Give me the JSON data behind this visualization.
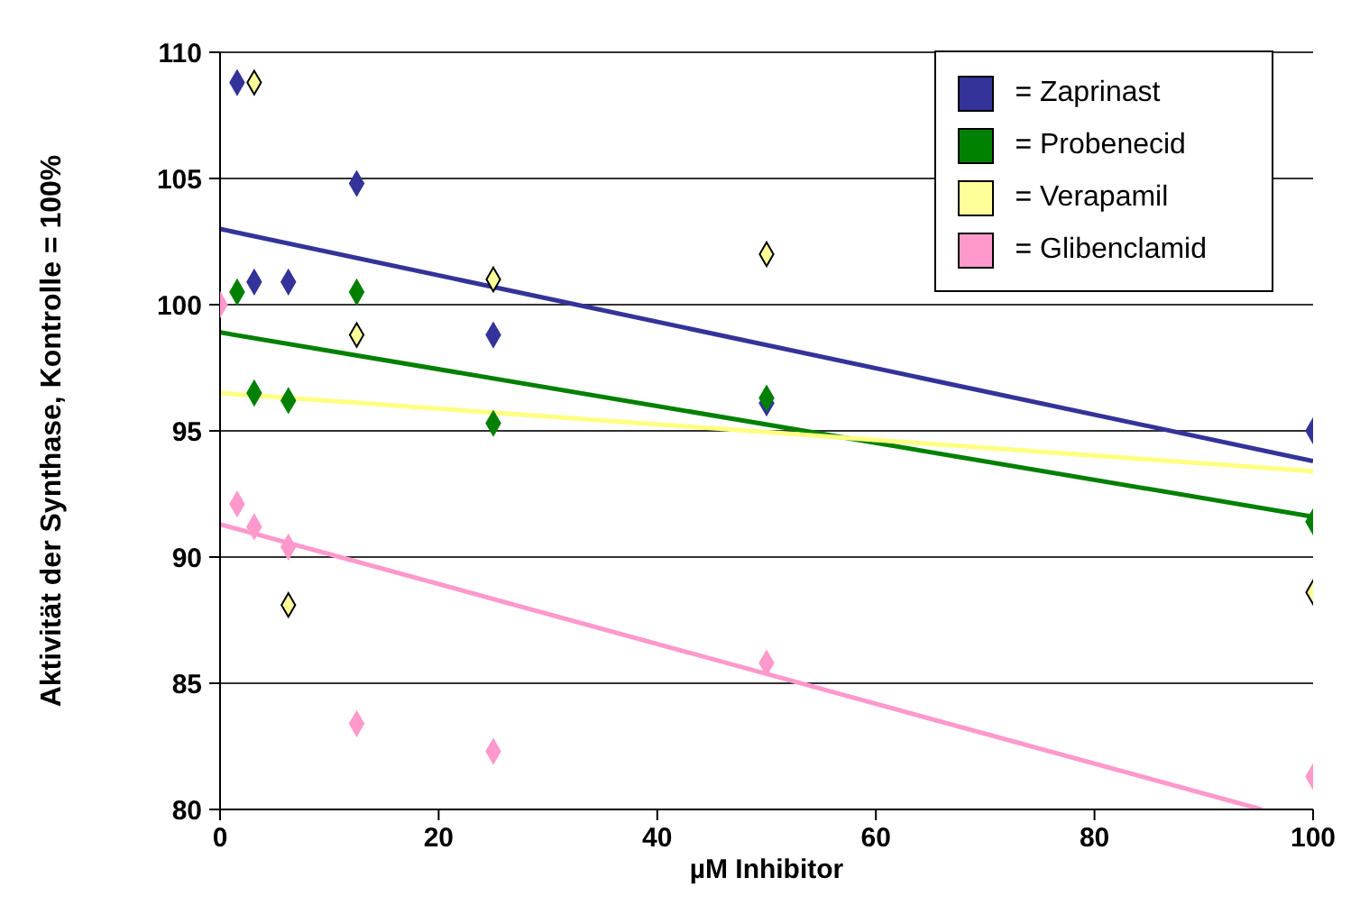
{
  "chart_data": {
    "type": "scatter",
    "xlabel": "µM Inhibitor",
    "ylabel": "Aktivität der Synthase, Kontrolle = 100%",
    "x": [
      0,
      1.5625,
      3.125,
      6.25,
      12.5,
      25,
      50,
      100
    ],
    "series": [
      {
        "name": "= Zaprinast",
        "color": "#333399",
        "values": [
          null,
          108.8,
          100.9,
          100.9,
          104.8,
          98.8,
          96.1,
          95.0
        ]
      },
      {
        "name": "= Probenecid",
        "color": "#008000",
        "values": [
          null,
          100.5,
          96.5,
          96.2,
          100.5,
          95.3,
          96.3,
          91.4
        ]
      },
      {
        "name": "= Verapamil",
        "color": "#ffff99",
        "values": [
          null,
          null,
          108.8,
          88.1,
          98.8,
          101.0,
          102.0,
          88.6
        ]
      },
      {
        "name": "= Glibenclamid",
        "color": "#ff99cc",
        "values": [
          100,
          92.1,
          91.2,
          90.4,
          83.4,
          82.3,
          85.8,
          81.3
        ]
      },
      {
        "type": "line",
        "marker": "none",
        "color": "#333399",
        "x": [
          0,
          100
        ],
        "values": [
          103.0,
          93.8
        ]
      },
      {
        "type": "line",
        "marker": "none",
        "color": "#008000",
        "x": [
          0,
          100
        ],
        "values": [
          98.9,
          91.6
        ]
      },
      {
        "type": "line",
        "marker": "none",
        "color": "#ffff80",
        "x": [
          0,
          100
        ],
        "values": [
          96.5,
          93.4
        ]
      },
      {
        "type": "line",
        "marker": "none",
        "color": "#ff99cc",
        "x": [
          0,
          95.3
        ],
        "values": [
          91.3,
          80
        ]
      }
    ],
    "xlim": [
      0,
      100
    ],
    "xticks": [
      0,
      20,
      40,
      60,
      80,
      100
    ],
    "ylim": [
      80,
      110
    ],
    "yticks": [
      80,
      85,
      90,
      95,
      100,
      105,
      110
    ],
    "grid": "y",
    "legend": "top right",
    "marker": "diamond"
  }
}
